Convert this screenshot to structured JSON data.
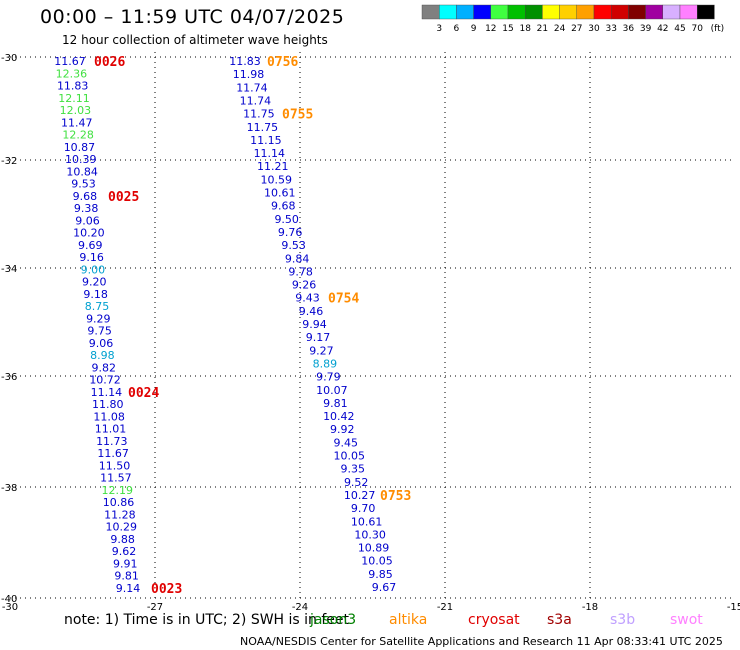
{
  "header": {
    "title": "00:00 – 11:59 UTC 04/07/2025",
    "subtitle": "12 hour collection of altimeter wave heights"
  },
  "legend": {
    "colors": [
      "#808080",
      "#00ffff",
      "#00b0ff",
      "#0000ff",
      "#40ff40",
      "#00c000",
      "#009000",
      "#ffff00",
      "#ffd000",
      "#ffa000",
      "#ff0000",
      "#d00000",
      "#800000",
      "#a000a0",
      "#d8b0ff",
      "#ff80ff",
      "#000000"
    ],
    "labels": [
      "3",
      "6",
      "9",
      "12",
      "15",
      "18",
      "21",
      "24",
      "27",
      "30",
      "33",
      "36",
      "39",
      "42",
      "45",
      "70"
    ],
    "unit": "(ft)"
  },
  "axes": {
    "x_ticks": [
      "-30",
      "-27",
      "-24",
      "-21",
      "-18",
      "-15"
    ],
    "y_ticks": [
      "-30",
      "-32",
      "-34",
      "-36",
      "-38",
      "-40"
    ]
  },
  "tracks": [
    {
      "points": [
        {
          "v": "11.67",
          "c": "#0000cc"
        },
        {
          "v": "12.36",
          "c": "#40e040"
        },
        {
          "v": "11.83",
          "c": "#0000cc"
        },
        {
          "v": "12.11",
          "c": "#40e040"
        },
        {
          "v": "12.03",
          "c": "#40e040"
        },
        {
          "v": "11.47",
          "c": "#0000cc"
        },
        {
          "v": "12.28",
          "c": "#40e040"
        },
        {
          "v": "10.87",
          "c": "#0000cc"
        },
        {
          "v": "10.39",
          "c": "#0000cc"
        },
        {
          "v": "10.84",
          "c": "#0000cc"
        },
        {
          "v": "9.53",
          "c": "#0000cc"
        },
        {
          "v": "9.68",
          "c": "#0000cc"
        },
        {
          "v": "9.38",
          "c": "#0000cc"
        },
        {
          "v": "9.06",
          "c": "#0000cc"
        },
        {
          "v": "10.20",
          "c": "#0000cc"
        },
        {
          "v": "9.69",
          "c": "#0000cc"
        },
        {
          "v": "9.16",
          "c": "#0000cc"
        },
        {
          "v": "9.00",
          "c": "#00a0d0"
        },
        {
          "v": "9.20",
          "c": "#0000cc"
        },
        {
          "v": "9.18",
          "c": "#0000cc"
        },
        {
          "v": "8.75",
          "c": "#00a0d0"
        },
        {
          "v": "9.29",
          "c": "#0000cc"
        },
        {
          "v": "9.75",
          "c": "#0000cc"
        },
        {
          "v": "9.06",
          "c": "#0000cc"
        },
        {
          "v": "8.98",
          "c": "#00a0d0"
        },
        {
          "v": "9.82",
          "c": "#0000cc"
        },
        {
          "v": "10.72",
          "c": "#0000cc"
        },
        {
          "v": "11.14",
          "c": "#0000cc"
        },
        {
          "v": "11.80",
          "c": "#0000cc"
        },
        {
          "v": "11.08",
          "c": "#0000cc"
        },
        {
          "v": "11.01",
          "c": "#0000cc"
        },
        {
          "v": "11.73",
          "c": "#0000cc"
        },
        {
          "v": "11.67",
          "c": "#0000cc"
        },
        {
          "v": "11.50",
          "c": "#0000cc"
        },
        {
          "v": "11.57",
          "c": "#0000cc"
        },
        {
          "v": "12.19",
          "c": "#40e040"
        },
        {
          "v": "10.86",
          "c": "#0000cc"
        },
        {
          "v": "11.28",
          "c": "#0000cc"
        },
        {
          "v": "10.29",
          "c": "#0000cc"
        },
        {
          "v": "9.88",
          "c": "#0000cc"
        },
        {
          "v": "9.62",
          "c": "#0000cc"
        },
        {
          "v": "9.91",
          "c": "#0000cc"
        },
        {
          "v": "9.81",
          "c": "#0000cc"
        },
        {
          "v": "9.14",
          "c": "#0000cc"
        }
      ],
      "times": [
        {
          "t": "0026",
          "c": "#e00000",
          "after": 0
        },
        {
          "t": "0025",
          "c": "#e00000",
          "after": 11
        },
        {
          "t": "0024",
          "c": "#e00000",
          "after": 27
        },
        {
          "t": "0023",
          "c": "#e00000",
          "after": 43
        }
      ]
    },
    {
      "points": [
        {
          "v": "11.83",
          "c": "#0000cc"
        },
        {
          "v": "11.98",
          "c": "#0000cc"
        },
        {
          "v": "11.74",
          "c": "#0000cc"
        },
        {
          "v": "11.74",
          "c": "#0000cc"
        },
        {
          "v": "11.75",
          "c": "#0000cc"
        },
        {
          "v": "11.75",
          "c": "#0000cc"
        },
        {
          "v": "11.15",
          "c": "#0000cc"
        },
        {
          "v": "11.14",
          "c": "#0000cc"
        },
        {
          "v": "11.21",
          "c": "#0000cc"
        },
        {
          "v": "10.59",
          "c": "#0000cc"
        },
        {
          "v": "10.61",
          "c": "#0000cc"
        },
        {
          "v": "9.68",
          "c": "#0000cc"
        },
        {
          "v": "9.50",
          "c": "#0000cc"
        },
        {
          "v": "9.76",
          "c": "#0000cc"
        },
        {
          "v": "9.53",
          "c": "#0000cc"
        },
        {
          "v": "9.84",
          "c": "#0000cc"
        },
        {
          "v": "9.78",
          "c": "#0000cc"
        },
        {
          "v": "9.26",
          "c": "#0000cc"
        },
        {
          "v": "9.43",
          "c": "#0000cc"
        },
        {
          "v": "9.46",
          "c": "#0000cc"
        },
        {
          "v": "9.94",
          "c": "#0000cc"
        },
        {
          "v": "9.17",
          "c": "#0000cc"
        },
        {
          "v": "9.27",
          "c": "#0000cc"
        },
        {
          "v": "8.89",
          "c": "#00a0d0"
        },
        {
          "v": "9.79",
          "c": "#0000cc"
        },
        {
          "v": "10.07",
          "c": "#0000cc"
        },
        {
          "v": "9.81",
          "c": "#0000cc"
        },
        {
          "v": "10.42",
          "c": "#0000cc"
        },
        {
          "v": "9.92",
          "c": "#0000cc"
        },
        {
          "v": "9.45",
          "c": "#0000cc"
        },
        {
          "v": "10.05",
          "c": "#0000cc"
        },
        {
          "v": "9.35",
          "c": "#0000cc"
        },
        {
          "v": "9.52",
          "c": "#0000cc"
        },
        {
          "v": "10.27",
          "c": "#0000cc"
        },
        {
          "v": "9.70",
          "c": "#0000cc"
        },
        {
          "v": "10.61",
          "c": "#0000cc"
        },
        {
          "v": "10.30",
          "c": "#0000cc"
        },
        {
          "v": "10.89",
          "c": "#0000cc"
        },
        {
          "v": "10.05",
          "c": "#0000cc"
        },
        {
          "v": "9.85",
          "c": "#0000cc"
        },
        {
          "v": "9.67",
          "c": "#0000cc"
        }
      ],
      "times": [
        {
          "t": "0756",
          "c": "#ff8c00",
          "after": 0
        },
        {
          "t": "0755",
          "c": "#ff8c00",
          "after": 4
        },
        {
          "t": "0754",
          "c": "#ff8c00",
          "after": 18
        },
        {
          "t": "0753",
          "c": "#ff8c00",
          "after": 33
        }
      ]
    }
  ],
  "note": "note:  1) Time is in UTC; 2) SWH is in feet",
  "satellites": [
    {
      "name": "jason3",
      "color": "#008000"
    },
    {
      "name": "altika",
      "color": "#ff8c00"
    },
    {
      "name": "cryosat",
      "color": "#e00000"
    },
    {
      "name": "s3a",
      "color": "#a00000"
    },
    {
      "name": "s3b",
      "color": "#c0a0ff"
    },
    {
      "name": "swot",
      "color": "#ff80ff"
    }
  ],
  "footer": "NOAA/NESDIS Center for Satellite Applications and Research     11 Apr 08:33:41 UTC 2025"
}
